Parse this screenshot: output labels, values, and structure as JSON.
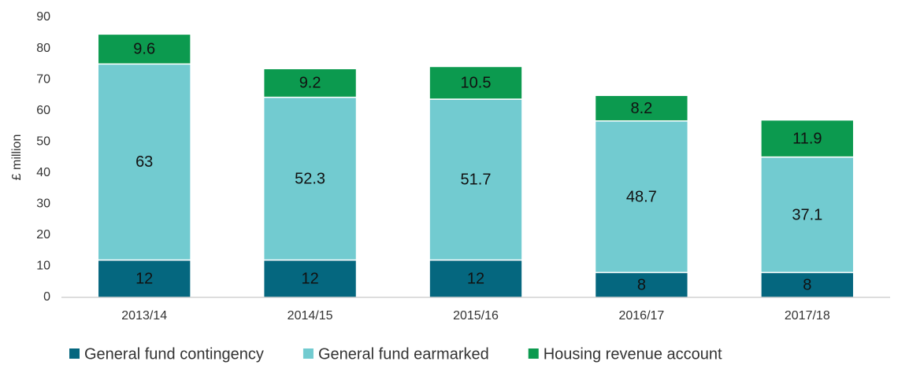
{
  "chart_data": {
    "type": "stacked_bar",
    "y_label": "£ million",
    "categories": [
      "2013/14",
      "2014/15",
      "2015/16",
      "2016/17",
      "2017/18"
    ],
    "series": [
      {
        "name": "General fund contingency",
        "color": "#05677f",
        "values": [
          12,
          12,
          12,
          8,
          8
        ]
      },
      {
        "name": "General fund earmarked",
        "color": "#72cbd0",
        "values": [
          63,
          52.3,
          51.7,
          48.7,
          37.1
        ]
      },
      {
        "name": "Housing revenue account",
        "color": "#0c9a4f",
        "values": [
          9.6,
          9.2,
          10.5,
          8.2,
          11.9
        ]
      }
    ],
    "ylim": [
      0,
      90
    ],
    "yticks": [
      0,
      10,
      20,
      30,
      40,
      50,
      60,
      70,
      80,
      90
    ],
    "grid": false,
    "legend": "bottom"
  }
}
